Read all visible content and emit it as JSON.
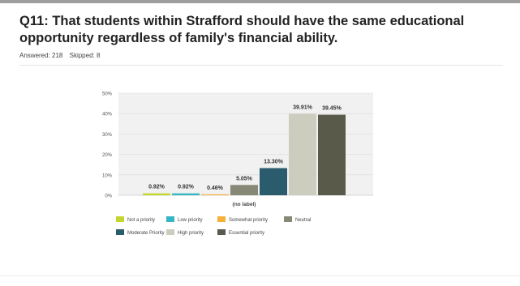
{
  "question": {
    "title": "Q11: That students within Strafford should have the same educational opportunity regardless of family's financial ability.",
    "answered": "Answered: 218",
    "skipped": "Skipped: 8"
  },
  "chart_data": {
    "type": "bar",
    "categories": [
      "(no label)"
    ],
    "series": [
      {
        "name": "Not a priority",
        "values": [
          0.92
        ],
        "label": "0.92%",
        "color": "#c3d62e"
      },
      {
        "name": "Low priority",
        "values": [
          0.92
        ],
        "label": "0.92%",
        "color": "#34b6c4"
      },
      {
        "name": "Somewhat priority",
        "values": [
          0.46
        ],
        "label": "0.46%",
        "color": "#f6b13b"
      },
      {
        "name": "Neutral",
        "values": [
          5.05
        ],
        "label": "5.05%",
        "color": "#878976"
      },
      {
        "name": "Moderate Priority",
        "values": [
          13.3
        ],
        "label": "13.30%",
        "color": "#2a5c6e"
      },
      {
        "name": "High priority",
        "values": [
          39.91
        ],
        "label": "39.91%",
        "color": "#cdcdbf"
      },
      {
        "name": "Essential priority",
        "values": [
          39.45
        ],
        "label": "39.45%",
        "color": "#5a5a4a"
      }
    ],
    "yticks": [
      "0%",
      "10%",
      "20%",
      "30%",
      "40%",
      "50%"
    ],
    "ylim": [
      0,
      50
    ],
    "xlabel": "",
    "ylabel": "",
    "grid": true,
    "legend_position": "bottom"
  }
}
